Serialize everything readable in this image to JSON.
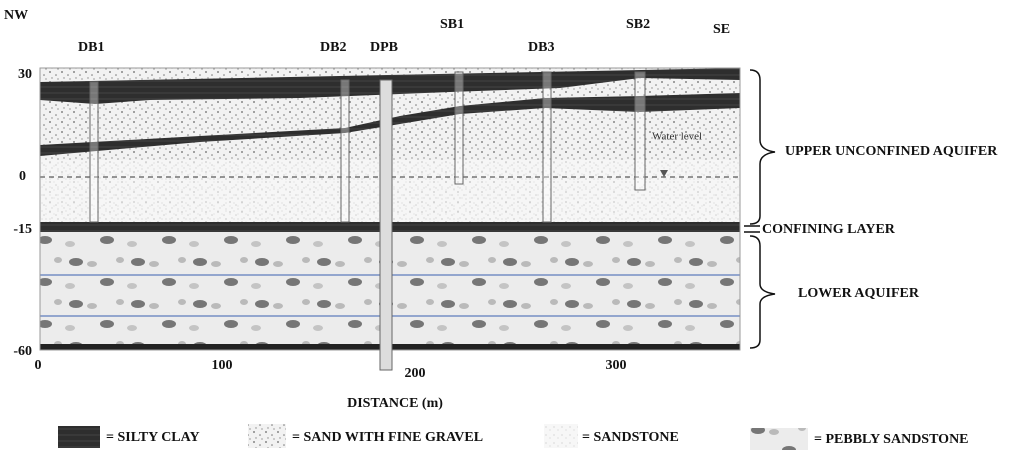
{
  "directions": {
    "left": "NW",
    "right": "SE"
  },
  "wells": [
    {
      "label": "DB1"
    },
    {
      "label": "DB2"
    },
    {
      "label": "DPB"
    },
    {
      "label": "SB1"
    },
    {
      "label": "DB3"
    },
    {
      "label": "SB2"
    }
  ],
  "y_axis": {
    "ticks": [
      "30",
      "0",
      "-15",
      "-60"
    ]
  },
  "x_axis": {
    "ticks": [
      "0",
      "100",
      "200",
      "300"
    ],
    "label": "DISTANCE (m)"
  },
  "annotation": "Water level",
  "zones": [
    "UPPER UNCONFINED AQUIFER",
    "CONFINING LAYER",
    "LOWER AQUIFER"
  ],
  "legend": [
    "= SILTY CLAY",
    "= SAND WITH FINE GRAVEL",
    "= SANDSTONE",
    "= PEBBLY SANDSTONE"
  ]
}
